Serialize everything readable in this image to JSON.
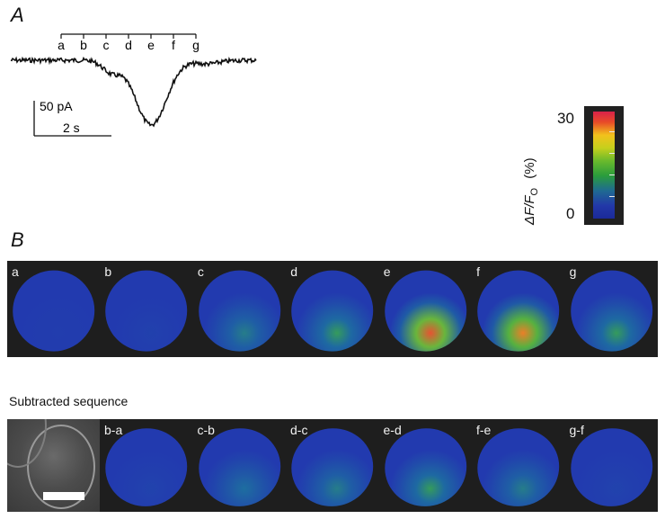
{
  "panel_a": {
    "letter": "A",
    "time_markers": [
      "a",
      "b",
      "c",
      "d",
      "e",
      "f",
      "g"
    ],
    "scale_current": "50 pA",
    "scale_time": "2 s"
  },
  "panel_b": {
    "letter": "B",
    "frame_labels": [
      "a",
      "b",
      "c",
      "d",
      "e",
      "f",
      "g"
    ],
    "frame_intensity": [
      0.02,
      0.04,
      0.35,
      0.45,
      0.95,
      0.9,
      0.45
    ],
    "subtracted_title": "Subtracted sequence",
    "subtracted_labels": [
      "b-a",
      "c-b",
      "d-c",
      "e-d",
      "f-e",
      "g-f"
    ],
    "subtracted_intensity": [
      0.05,
      0.3,
      0.35,
      0.45,
      0.35,
      0.05
    ]
  },
  "colorbar": {
    "max": "30",
    "min": "0",
    "unit": "(%)",
    "quantity_main": "ΔF/F",
    "quantity_sub": "O"
  },
  "colors": {
    "strip_background": "#1e1e1e",
    "cell_base": "#2a3fb0",
    "trace": "#111111"
  }
}
